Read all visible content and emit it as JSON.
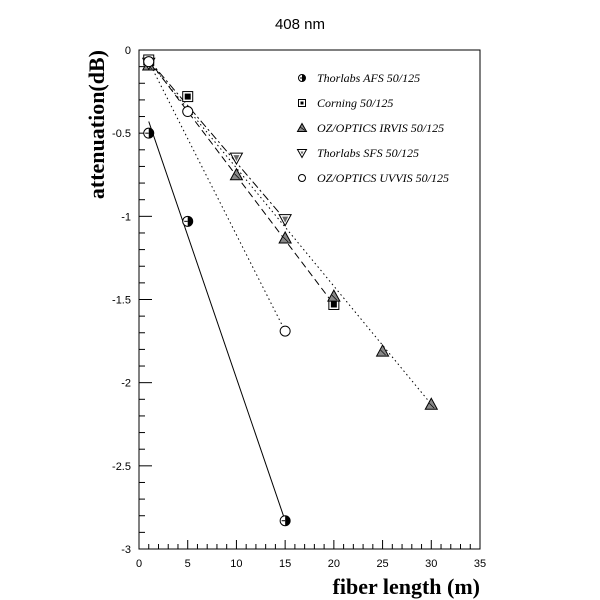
{
  "chart_data": {
    "type": "scatter",
    "title": "408 nm",
    "xlabel": "fiber length (m)",
    "ylabel": "attenuation(dB)",
    "xlim": [
      0,
      35
    ],
    "ylim": [
      -3,
      0
    ],
    "xticks": [
      "0",
      "5",
      "10",
      "15",
      "20",
      "25",
      "30",
      "35"
    ],
    "yticks": [
      "0",
      "-0.5",
      "-1",
      "-1.5",
      "-2",
      "-2.5",
      "-3"
    ],
    "legend_position": "top-right",
    "grid": false,
    "series": [
      {
        "name": "Thorlabs AFS 50/125",
        "marker": "circle-half",
        "line": "solid",
        "x": [
          1,
          5,
          15
        ],
        "y": [
          -0.5,
          -1.03,
          -2.83
        ],
        "fit": {
          "x": [
            1,
            15
          ],
          "y": [
            -0.43,
            -2.83
          ]
        }
      },
      {
        "name": "Corning 50/125",
        "marker": "square",
        "line": "dashed",
        "x": [
          1,
          5,
          20
        ],
        "y": [
          -0.06,
          -0.28,
          -1.53
        ],
        "fit": {
          "x": [
            1,
            20
          ],
          "y": [
            -0.06,
            -1.53
          ]
        }
      },
      {
        "name": "OZ/OPTICS IRVIS 50/125",
        "marker": "triangle-up",
        "line": "dotted",
        "x": [
          1,
          10,
          15,
          20,
          25,
          30
        ],
        "y": [
          -0.09,
          -0.75,
          -1.13,
          -1.48,
          -1.81,
          -2.13
        ],
        "fit": {
          "x": [
            1,
            30
          ],
          "y": [
            -0.07,
            -2.13
          ]
        }
      },
      {
        "name": "Thorlabs SFS 50/125",
        "marker": "triangle-down",
        "line": "dashdot",
        "x": [
          1,
          10,
          15
        ],
        "y": [
          -0.08,
          -0.65,
          -1.02
        ],
        "fit": {
          "x": [
            1,
            15
          ],
          "y": [
            -0.06,
            -1.02
          ]
        }
      },
      {
        "name": "OZ/OPTICS UVVIS 50/125",
        "marker": "circle-open",
        "line": "dotted",
        "x": [
          1,
          5,
          15
        ],
        "y": [
          -0.07,
          -0.37,
          -1.69
        ],
        "fit": {
          "x": [
            1,
            15
          ],
          "y": [
            -0.07,
            -1.69
          ]
        }
      }
    ]
  }
}
